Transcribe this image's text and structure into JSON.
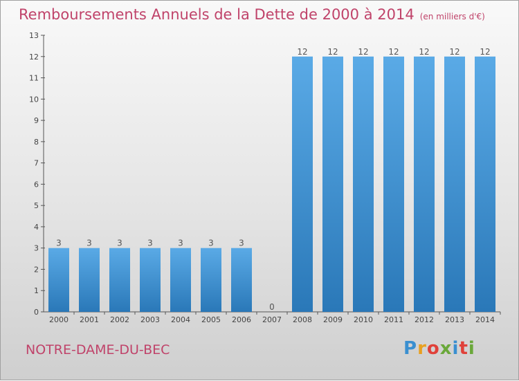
{
  "header": {
    "title": "Remboursements Annuels de la Dette de 2000 à 2014",
    "unit": "(en milliers d'€)"
  },
  "footer": {
    "commune": "NOTRE-DAME-DU-BEC",
    "logo_text": "Proxiti",
    "logo_colors": [
      "#3a8fd0",
      "#e8a020",
      "#e0413a",
      "#6aa83a",
      "#3a8fd0",
      "#e0413a",
      "#6aa83a"
    ]
  },
  "chart_data": {
    "type": "bar",
    "categories": [
      "2000",
      "2001",
      "2002",
      "2003",
      "2004",
      "2005",
      "2006",
      "2007",
      "2008",
      "2009",
      "2010",
      "2011",
      "2012",
      "2013",
      "2014"
    ],
    "values": [
      3,
      3,
      3,
      3,
      3,
      3,
      3,
      0,
      12,
      12,
      12,
      12,
      12,
      12,
      12
    ],
    "data_labels": [
      "3",
      "3",
      "3",
      "3",
      "3",
      "3",
      "3",
      "0",
      "12",
      "12",
      "12",
      "12",
      "12",
      "12",
      "12"
    ],
    "title": "Remboursements Annuels de la Dette de 2000 à 2014",
    "xlabel": "",
    "ylabel": "",
    "ylim": [
      0,
      13
    ],
    "yticks": [
      0,
      1,
      2,
      3,
      4,
      5,
      6,
      7,
      8,
      9,
      10,
      11,
      12,
      13
    ],
    "grid": false,
    "bar_color": "#3a8fd0"
  }
}
